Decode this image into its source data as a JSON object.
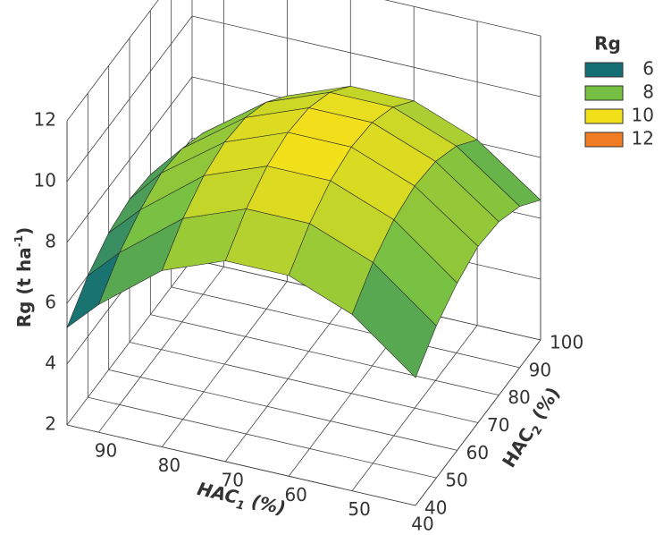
{
  "chart_data": {
    "type": "surface",
    "zlabel": {
      "text": "Rg (t ha",
      "sup": "-1",
      "tail": ")"
    },
    "xlabel": {
      "text": "HAC",
      "sub": "1",
      "tail": " (%)"
    },
    "ylabel": {
      "text": "HAC",
      "sub": "2",
      "tail": " (%)"
    },
    "x": [
      40,
      50,
      60,
      70,
      80,
      90,
      95
    ],
    "y": [
      40,
      50,
      60,
      70,
      80,
      90,
      100
    ],
    "z": [
      [
        6.2,
        7.0,
        7.5,
        7.8,
        7.7,
        7.3,
        6.6
      ],
      [
        7.8,
        8.6,
        9.1,
        9.3,
        9.2,
        8.8,
        8.1
      ],
      [
        8.6,
        9.4,
        9.9,
        10.1,
        10.0,
        9.6,
        8.9
      ],
      [
        8.6,
        9.4,
        9.9,
        10.1,
        10.0,
        9.6,
        8.9
      ],
      [
        7.8,
        8.6,
        9.1,
        9.3,
        9.2,
        8.8,
        8.1
      ],
      [
        6.2,
        7.0,
        7.5,
        7.8,
        7.7,
        7.3,
        6.6
      ],
      [
        5.2,
        6.0,
        6.5,
        6.7,
        6.6,
        6.2,
        5.5
      ]
    ],
    "xlim": [
      40,
      95
    ],
    "ylim": [
      40,
      100
    ],
    "zlim": [
      2,
      12
    ],
    "xticks": [
      90,
      80,
      70,
      60,
      50,
      40
    ],
    "yticks": [
      40,
      50,
      60,
      70,
      80,
      90,
      100
    ],
    "zticks": [
      2,
      4,
      6,
      8,
      10,
      12
    ],
    "colorscale_title": "Rg",
    "colorscale": [
      {
        "value": 6,
        "color": "#136f73"
      },
      {
        "value": 8,
        "color": "#76c043"
      },
      {
        "value": 10,
        "color": "#f2e11a"
      },
      {
        "value": 12,
        "color": "#f07b21"
      }
    ],
    "under_color": "#1c2260",
    "grid": true
  }
}
